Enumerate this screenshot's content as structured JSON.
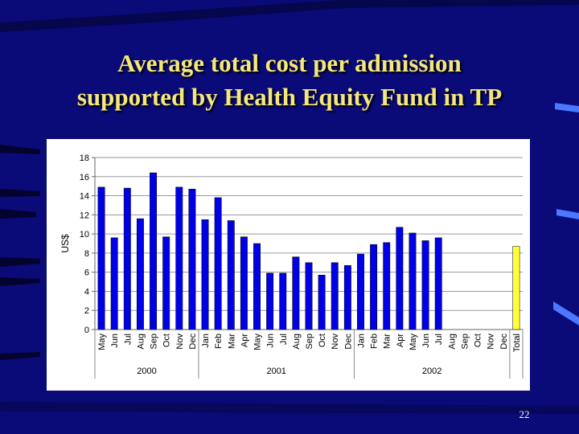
{
  "slide": {
    "title_line1": "Average total cost per admission",
    "title_line2": "supported by Health Equity Fund in TP",
    "page_number": "22"
  },
  "colors": {
    "background": "#0a0a78",
    "title": "#f4e87a",
    "bar": "#0000e6",
    "total_bar": "#ffff33"
  },
  "chart_data": {
    "type": "bar",
    "title": "",
    "xlabel": "",
    "ylabel": "US$",
    "ylim": [
      0,
      18
    ],
    "yticks": [
      0,
      2,
      4,
      6,
      8,
      10,
      12,
      14,
      16,
      18
    ],
    "grid": true,
    "legend": "none",
    "categories": [
      "May",
      "Jun",
      "Jul",
      "Aug",
      "Sep",
      "Oct",
      "Nov",
      "Dec",
      "Jan",
      "Feb",
      "Mar",
      "Apr",
      "May",
      "Jun",
      "Jul",
      "Aug",
      "Sep",
      "Oct",
      "Nov",
      "Dec",
      "Jan",
      "Feb",
      "Mar",
      "Apr",
      "May",
      "Jun",
      "Jul",
      "Aug",
      "Sep",
      "Oct",
      "Nov",
      "Dec",
      "Total"
    ],
    "values": [
      14.9,
      9.6,
      14.8,
      11.6,
      16.4,
      9.7,
      14.9,
      14.7,
      11.5,
      13.8,
      11.4,
      9.7,
      9.0,
      5.9,
      5.9,
      7.6,
      7.0,
      5.7,
      7.0,
      6.7,
      7.9,
      8.9,
      9.1,
      10.7,
      10.1,
      9.3,
      9.6,
      null,
      null,
      null,
      null,
      null,
      8.7
    ],
    "year_groups": [
      {
        "label": "2000",
        "start": 0,
        "end": 7
      },
      {
        "label": "2001",
        "start": 8,
        "end": 19
      },
      {
        "label": "2002",
        "start": 20,
        "end": 31
      }
    ],
    "highlight_index": 32
  }
}
